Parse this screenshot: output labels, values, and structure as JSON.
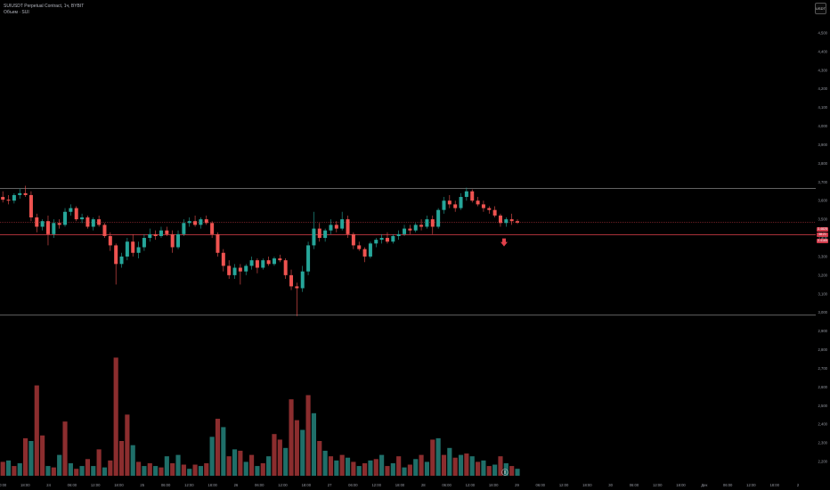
{
  "header": {
    "symbol": "SUIUSDT Perpetual Contract, 1ч, BYBIT",
    "indicator": "Объем · SUI"
  },
  "currency_button": "USDT",
  "price_tags": [
    "3.4825",
    "38:21",
    "3.4165"
  ],
  "colors": {
    "up": "#26a69a",
    "down": "#ef5350",
    "vol_up": "#1f6f69",
    "vol_down": "#8b2d2e",
    "line": "#c4c4c4",
    "red_line": "#e0404a"
  },
  "chart_data": {
    "type": "candlestick",
    "y_axis": {
      "ticks": [
        "4,500",
        "4,400",
        "4,300",
        "4,200",
        "4,100",
        "4,000",
        "3,900",
        "3,800",
        "3,700",
        "3,600",
        "3,500",
        "3,400",
        "3,300",
        "3,200",
        "3,100",
        "3,000",
        "2,900",
        "2,800",
        "2,700",
        "2,600",
        "2,500",
        "2,400",
        "2,300",
        "2,200"
      ]
    },
    "x_axis": {
      "ticks": [
        "00:00",
        "18:00",
        "24",
        "06:00",
        "12:00",
        "18:00",
        "25",
        "06:00",
        "12:00",
        "18:00",
        "26",
        "06:00",
        "12:00",
        "18:00",
        "27",
        "06:00",
        "12:00",
        "18:00",
        "28",
        "06:00",
        "12:00",
        "18:00",
        "29",
        "06:00",
        "12:00",
        "18:00",
        "30",
        "06:00",
        "12:00",
        "18:00",
        "Дек",
        "06:00",
        "12:00",
        "18:00",
        "2"
      ]
    },
    "horizontal_lines": [
      3.665,
      2.985
    ],
    "red_line": 3.4165,
    "current_line": 3.4825,
    "candles": [
      {
        "o": 3.62,
        "h": 3.65,
        "l": 3.59,
        "c": 3.605
      },
      {
        "o": 3.605,
        "h": 3.63,
        "l": 3.58,
        "c": 3.6
      },
      {
        "o": 3.6,
        "h": 3.64,
        "l": 3.585,
        "c": 3.63
      },
      {
        "o": 3.63,
        "h": 3.665,
        "l": 3.61,
        "c": 3.64
      },
      {
        "o": 3.64,
        "h": 3.68,
        "l": 3.62,
        "c": 3.63
      },
      {
        "o": 3.63,
        "h": 3.65,
        "l": 3.49,
        "c": 3.51
      },
      {
        "o": 3.51,
        "h": 3.53,
        "l": 3.43,
        "c": 3.46
      },
      {
        "o": 3.46,
        "h": 3.5,
        "l": 3.44,
        "c": 3.49
      },
      {
        "o": 3.49,
        "h": 3.52,
        "l": 3.36,
        "c": 3.42
      },
      {
        "o": 3.42,
        "h": 3.5,
        "l": 3.4,
        "c": 3.48
      },
      {
        "o": 3.48,
        "h": 3.5,
        "l": 3.45,
        "c": 3.47
      },
      {
        "o": 3.47,
        "h": 3.56,
        "l": 3.46,
        "c": 3.54
      },
      {
        "o": 3.54,
        "h": 3.58,
        "l": 3.52,
        "c": 3.56
      },
      {
        "o": 3.56,
        "h": 3.57,
        "l": 3.49,
        "c": 3.5
      },
      {
        "o": 3.5,
        "h": 3.53,
        "l": 3.48,
        "c": 3.51
      },
      {
        "o": 3.51,
        "h": 3.52,
        "l": 3.45,
        "c": 3.46
      },
      {
        "o": 3.46,
        "h": 3.51,
        "l": 3.44,
        "c": 3.5
      },
      {
        "o": 3.5,
        "h": 3.52,
        "l": 3.46,
        "c": 3.47
      },
      {
        "o": 3.47,
        "h": 3.48,
        "l": 3.4,
        "c": 3.41
      },
      {
        "o": 3.41,
        "h": 3.43,
        "l": 3.33,
        "c": 3.36
      },
      {
        "o": 3.36,
        "h": 3.37,
        "l": 3.15,
        "c": 3.26
      },
      {
        "o": 3.26,
        "h": 3.32,
        "l": 3.24,
        "c": 3.3
      },
      {
        "o": 3.3,
        "h": 3.4,
        "l": 3.28,
        "c": 3.38
      },
      {
        "o": 3.38,
        "h": 3.42,
        "l": 3.3,
        "c": 3.32
      },
      {
        "o": 3.32,
        "h": 3.38,
        "l": 3.29,
        "c": 3.35
      },
      {
        "o": 3.35,
        "h": 3.42,
        "l": 3.33,
        "c": 3.4
      },
      {
        "o": 3.4,
        "h": 3.45,
        "l": 3.38,
        "c": 3.42
      },
      {
        "o": 3.42,
        "h": 3.44,
        "l": 3.39,
        "c": 3.41
      },
      {
        "o": 3.41,
        "h": 3.46,
        "l": 3.4,
        "c": 3.44
      },
      {
        "o": 3.44,
        "h": 3.46,
        "l": 3.41,
        "c": 3.42
      },
      {
        "o": 3.42,
        "h": 3.44,
        "l": 3.32,
        "c": 3.35
      },
      {
        "o": 3.35,
        "h": 3.44,
        "l": 3.34,
        "c": 3.42
      },
      {
        "o": 3.42,
        "h": 3.5,
        "l": 3.41,
        "c": 3.48
      },
      {
        "o": 3.48,
        "h": 3.51,
        "l": 3.46,
        "c": 3.49
      },
      {
        "o": 3.49,
        "h": 3.52,
        "l": 3.46,
        "c": 3.47
      },
      {
        "o": 3.47,
        "h": 3.51,
        "l": 3.45,
        "c": 3.5
      },
      {
        "o": 3.5,
        "h": 3.52,
        "l": 3.47,
        "c": 3.48
      },
      {
        "o": 3.48,
        "h": 3.49,
        "l": 3.4,
        "c": 3.42
      },
      {
        "o": 3.42,
        "h": 3.43,
        "l": 3.3,
        "c": 3.32
      },
      {
        "o": 3.32,
        "h": 3.34,
        "l": 3.22,
        "c": 3.25
      },
      {
        "o": 3.25,
        "h": 3.28,
        "l": 3.18,
        "c": 3.2
      },
      {
        "o": 3.2,
        "h": 3.26,
        "l": 3.18,
        "c": 3.24
      },
      {
        "o": 3.24,
        "h": 3.26,
        "l": 3.15,
        "c": 3.22
      },
      {
        "o": 3.22,
        "h": 3.26,
        "l": 3.2,
        "c": 3.25
      },
      {
        "o": 3.25,
        "h": 3.3,
        "l": 3.23,
        "c": 3.28
      },
      {
        "o": 3.28,
        "h": 3.29,
        "l": 3.21,
        "c": 3.24
      },
      {
        "o": 3.24,
        "h": 3.29,
        "l": 3.23,
        "c": 3.28
      },
      {
        "o": 3.28,
        "h": 3.3,
        "l": 3.25,
        "c": 3.26
      },
      {
        "o": 3.26,
        "h": 3.3,
        "l": 3.25,
        "c": 3.29
      },
      {
        "o": 3.29,
        "h": 3.31,
        "l": 3.27,
        "c": 3.28
      },
      {
        "o": 3.28,
        "h": 3.29,
        "l": 3.18,
        "c": 3.2
      },
      {
        "o": 3.2,
        "h": 3.23,
        "l": 3.12,
        "c": 3.14
      },
      {
        "o": 3.14,
        "h": 3.16,
        "l": 2.98,
        "c": 3.13
      },
      {
        "o": 3.13,
        "h": 3.25,
        "l": 3.11,
        "c": 3.22
      },
      {
        "o": 3.22,
        "h": 3.38,
        "l": 3.2,
        "c": 3.36
      },
      {
        "o": 3.36,
        "h": 3.54,
        "l": 3.34,
        "c": 3.45
      },
      {
        "o": 3.45,
        "h": 3.48,
        "l": 3.38,
        "c": 3.4
      },
      {
        "o": 3.4,
        "h": 3.45,
        "l": 3.38,
        "c": 3.44
      },
      {
        "o": 3.44,
        "h": 3.5,
        "l": 3.42,
        "c": 3.47
      },
      {
        "o": 3.47,
        "h": 3.49,
        "l": 3.43,
        "c": 3.45
      },
      {
        "o": 3.45,
        "h": 3.54,
        "l": 3.44,
        "c": 3.5
      },
      {
        "o": 3.5,
        "h": 3.52,
        "l": 3.4,
        "c": 3.42
      },
      {
        "o": 3.42,
        "h": 3.43,
        "l": 3.34,
        "c": 3.36
      },
      {
        "o": 3.36,
        "h": 3.38,
        "l": 3.33,
        "c": 3.34
      },
      {
        "o": 3.34,
        "h": 3.35,
        "l": 3.27,
        "c": 3.3
      },
      {
        "o": 3.3,
        "h": 3.38,
        "l": 3.29,
        "c": 3.37
      },
      {
        "o": 3.37,
        "h": 3.4,
        "l": 3.35,
        "c": 3.39
      },
      {
        "o": 3.39,
        "h": 3.42,
        "l": 3.37,
        "c": 3.4
      },
      {
        "o": 3.4,
        "h": 3.43,
        "l": 3.37,
        "c": 3.38
      },
      {
        "o": 3.38,
        "h": 3.42,
        "l": 3.37,
        "c": 3.41
      },
      {
        "o": 3.41,
        "h": 3.44,
        "l": 3.39,
        "c": 3.42
      },
      {
        "o": 3.42,
        "h": 3.47,
        "l": 3.41,
        "c": 3.45
      },
      {
        "o": 3.45,
        "h": 3.47,
        "l": 3.42,
        "c": 3.44
      },
      {
        "o": 3.44,
        "h": 3.48,
        "l": 3.43,
        "c": 3.47
      },
      {
        "o": 3.47,
        "h": 3.5,
        "l": 3.44,
        "c": 3.46
      },
      {
        "o": 3.46,
        "h": 3.52,
        "l": 3.45,
        "c": 3.5
      },
      {
        "o": 3.5,
        "h": 3.52,
        "l": 3.42,
        "c": 3.46
      },
      {
        "o": 3.46,
        "h": 3.56,
        "l": 3.45,
        "c": 3.55
      },
      {
        "o": 3.55,
        "h": 3.62,
        "l": 3.53,
        "c": 3.6
      },
      {
        "o": 3.6,
        "h": 3.63,
        "l": 3.56,
        "c": 3.58
      },
      {
        "o": 3.58,
        "h": 3.6,
        "l": 3.54,
        "c": 3.56
      },
      {
        "o": 3.56,
        "h": 3.64,
        "l": 3.55,
        "c": 3.62
      },
      {
        "o": 3.62,
        "h": 3.67,
        "l": 3.6,
        "c": 3.65
      },
      {
        "o": 3.65,
        "h": 3.66,
        "l": 3.59,
        "c": 3.6
      },
      {
        "o": 3.6,
        "h": 3.62,
        "l": 3.57,
        "c": 3.58
      },
      {
        "o": 3.58,
        "h": 3.6,
        "l": 3.54,
        "c": 3.56
      },
      {
        "o": 3.56,
        "h": 3.57,
        "l": 3.53,
        "c": 3.55
      },
      {
        "o": 3.55,
        "h": 3.57,
        "l": 3.51,
        "c": 3.52
      },
      {
        "o": 3.52,
        "h": 3.53,
        "l": 3.46,
        "c": 3.48
      },
      {
        "o": 3.48,
        "h": 3.51,
        "l": 3.46,
        "c": 3.5
      },
      {
        "o": 3.5,
        "h": 3.53,
        "l": 3.47,
        "c": 3.49
      },
      {
        "o": 3.49,
        "h": 3.5,
        "l": 3.475,
        "c": 3.482
      }
    ],
    "volume": [
      {
        "v": 20,
        "up": false
      },
      {
        "v": 22,
        "up": true
      },
      {
        "v": 14,
        "up": false
      },
      {
        "v": 18,
        "up": true
      },
      {
        "v": 54,
        "up": false
      },
      {
        "v": 50,
        "up": true
      },
      {
        "v": 130,
        "up": false
      },
      {
        "v": 58,
        "up": false
      },
      {
        "v": 14,
        "up": true
      },
      {
        "v": 12,
        "up": false
      },
      {
        "v": 30,
        "up": true
      },
      {
        "v": 78,
        "up": false
      },
      {
        "v": 18,
        "up": true
      },
      {
        "v": 10,
        "up": false
      },
      {
        "v": 14,
        "up": true
      },
      {
        "v": 24,
        "up": false
      },
      {
        "v": 14,
        "up": true
      },
      {
        "v": 38,
        "up": false
      },
      {
        "v": 12,
        "up": true
      },
      {
        "v": 22,
        "up": false
      },
      {
        "v": 170,
        "up": false
      },
      {
        "v": 50,
        "up": false
      },
      {
        "v": 88,
        "up": false
      },
      {
        "v": 44,
        "up": true
      },
      {
        "v": 20,
        "up": false
      },
      {
        "v": 14,
        "up": true
      },
      {
        "v": 18,
        "up": false
      },
      {
        "v": 14,
        "up": true
      },
      {
        "v": 12,
        "up": false
      },
      {
        "v": 28,
        "up": true
      },
      {
        "v": 18,
        "up": false
      },
      {
        "v": 30,
        "up": true
      },
      {
        "v": 16,
        "up": false
      },
      {
        "v": 10,
        "up": true
      },
      {
        "v": 16,
        "up": false
      },
      {
        "v": 14,
        "up": true
      },
      {
        "v": 18,
        "up": false
      },
      {
        "v": 56,
        "up": true
      },
      {
        "v": 82,
        "up": false
      },
      {
        "v": 70,
        "up": true
      },
      {
        "v": 28,
        "up": false
      },
      {
        "v": 38,
        "up": true
      },
      {
        "v": 36,
        "up": false
      },
      {
        "v": 20,
        "up": true
      },
      {
        "v": 30,
        "up": false
      },
      {
        "v": 14,
        "up": true
      },
      {
        "v": 18,
        "up": false
      },
      {
        "v": 28,
        "up": true
      },
      {
        "v": 60,
        "up": false
      },
      {
        "v": 52,
        "up": false
      },
      {
        "v": 40,
        "up": true
      },
      {
        "v": 110,
        "up": false
      },
      {
        "v": 80,
        "up": false
      },
      {
        "v": 66,
        "up": true
      },
      {
        "v": 116,
        "up": false
      },
      {
        "v": 90,
        "up": true
      },
      {
        "v": 50,
        "up": false
      },
      {
        "v": 36,
        "up": true
      },
      {
        "v": 28,
        "up": false
      },
      {
        "v": 22,
        "up": true
      },
      {
        "v": 30,
        "up": false
      },
      {
        "v": 26,
        "up": true
      },
      {
        "v": 20,
        "up": false
      },
      {
        "v": 14,
        "up": true
      },
      {
        "v": 18,
        "up": false
      },
      {
        "v": 22,
        "up": true
      },
      {
        "v": 24,
        "up": false
      },
      {
        "v": 30,
        "up": true
      },
      {
        "v": 14,
        "up": false
      },
      {
        "v": 18,
        "up": true
      },
      {
        "v": 28,
        "up": false
      },
      {
        "v": 12,
        "up": true
      },
      {
        "v": 16,
        "up": false
      },
      {
        "v": 24,
        "up": true
      },
      {
        "v": 30,
        "up": false
      },
      {
        "v": 20,
        "up": true
      },
      {
        "v": 52,
        "up": false
      },
      {
        "v": 54,
        "up": true
      },
      {
        "v": 30,
        "up": false
      },
      {
        "v": 40,
        "up": true
      },
      {
        "v": 26,
        "up": false
      },
      {
        "v": 30,
        "up": true
      },
      {
        "v": 32,
        "up": false
      },
      {
        "v": 28,
        "up": true
      },
      {
        "v": 20,
        "up": false
      },
      {
        "v": 22,
        "up": true
      },
      {
        "v": 14,
        "up": false
      },
      {
        "v": 16,
        "up": true
      },
      {
        "v": 28,
        "up": false
      },
      {
        "v": 18,
        "up": true
      },
      {
        "v": 14,
        "up": false
      },
      {
        "v": 10,
        "up": true
      }
    ]
  }
}
